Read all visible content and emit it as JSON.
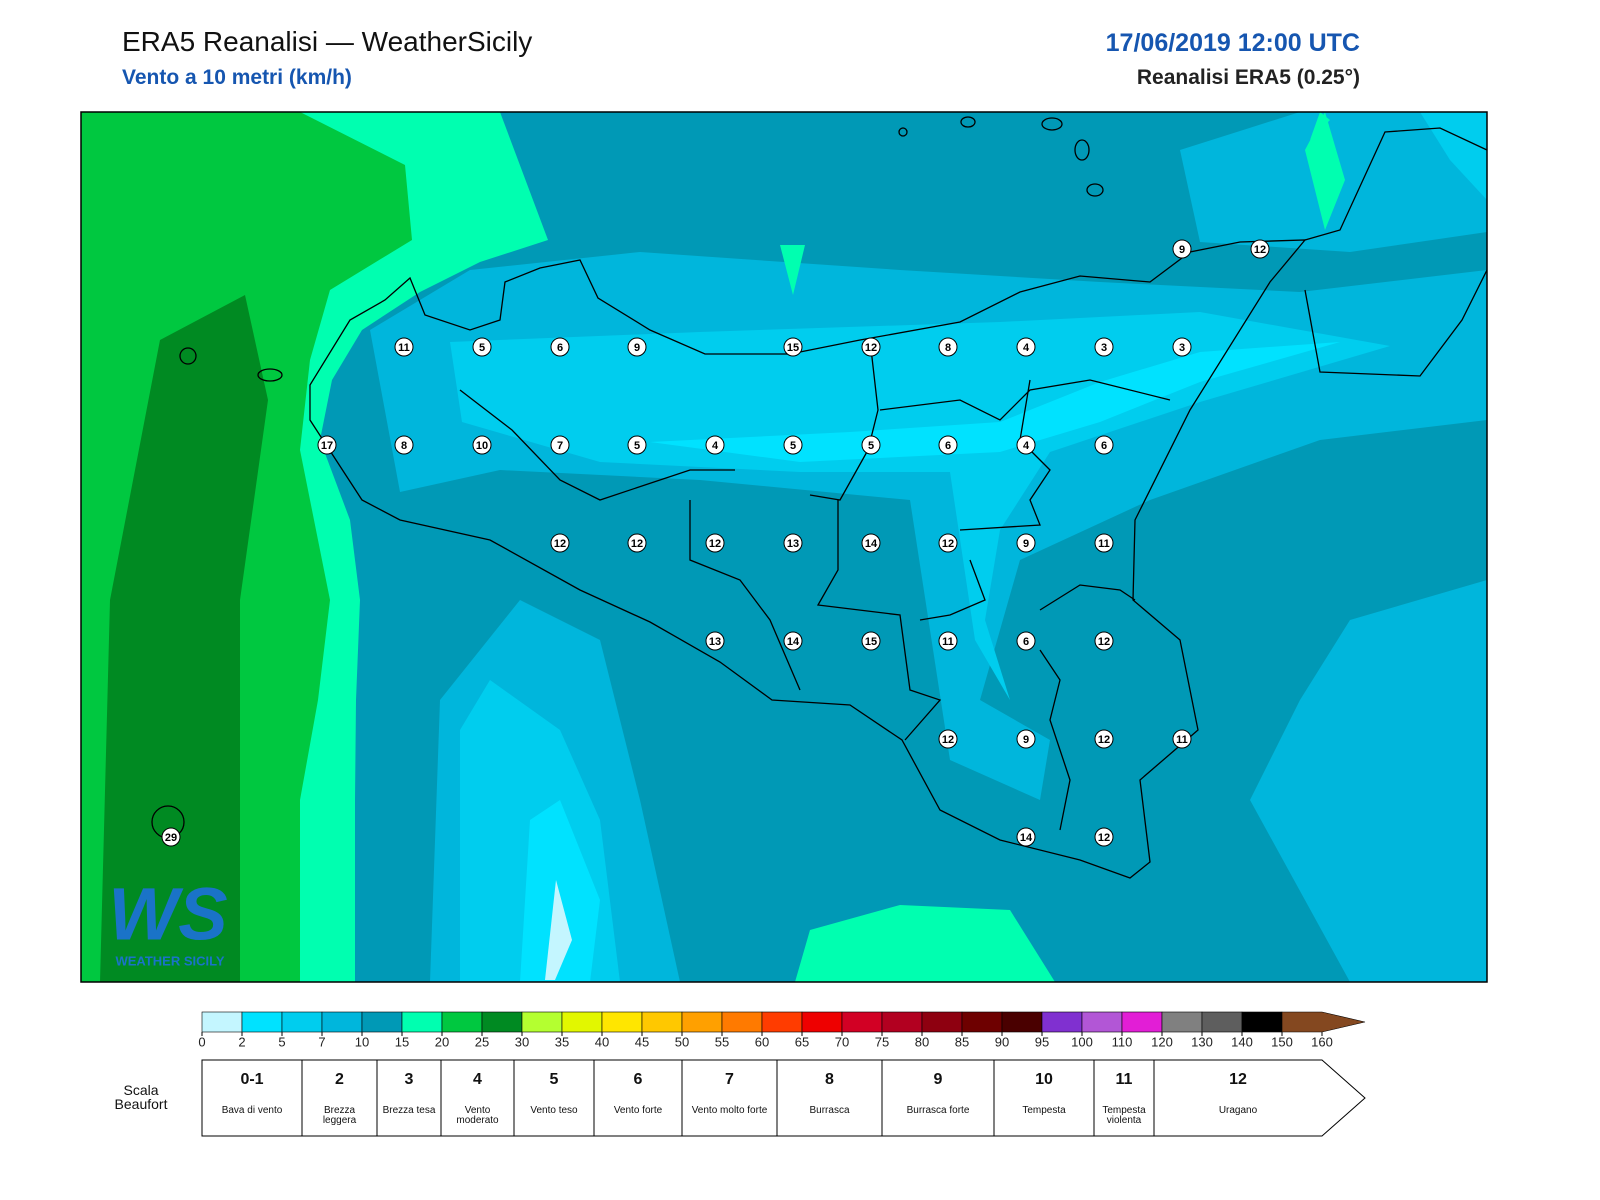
{
  "header": {
    "title": "ERA5 Reanalisi — WeatherSicily",
    "subtitle": "Vento a 10 metri (km/h)",
    "datetime": "17/06/2019 12:00 UTC",
    "source": "Reanalisi ERA5 (0.25°)"
  },
  "logo": {
    "mark": "WS",
    "name": "WEATHER SICILY"
  },
  "stations": [
    9,
    12,
    11,
    5,
    6,
    9,
    15,
    12,
    8,
    4,
    3,
    3,
    17,
    8,
    10,
    7,
    5,
    4,
    5,
    5,
    6,
    4,
    6,
    12,
    12,
    12,
    13,
    14,
    12,
    9,
    11,
    13,
    14,
    15,
    11,
    6,
    12,
    12,
    9,
    12,
    11,
    29,
    14,
    12
  ],
  "colorbar": {
    "ticks": [
      0,
      2,
      5,
      7,
      10,
      15,
      20,
      25,
      30,
      35,
      40,
      45,
      50,
      55,
      60,
      65,
      70,
      75,
      80,
      85,
      90,
      95,
      100,
      110,
      120,
      130,
      140,
      150,
      160
    ],
    "colors": [
      "#c4f6ff",
      "#00e2ff",
      "#00cdee",
      "#00b6dc",
      "#0099b6",
      "#00ffb0",
      "#00c840",
      "#008a22",
      "#b4ff30",
      "#e2f700",
      "#ffe600",
      "#ffc800",
      "#ffa000",
      "#ff7a00",
      "#ff3c00",
      "#ee0000",
      "#d20024",
      "#b20020",
      "#8e0010",
      "#6e0000",
      "#4a0000",
      "#8030d0",
      "#b256d6",
      "#e21ed6",
      "#808080",
      "#5e5e5e",
      "#000000",
      "#844820",
      "#c47e42"
    ]
  },
  "beaufort": {
    "title": "Scala Beaufort",
    "forces": [
      {
        "force": "0-1",
        "label": "Bava di vento"
      },
      {
        "force": "2",
        "label": "Brezza leggera"
      },
      {
        "force": "3",
        "label": "Brezza tesa"
      },
      {
        "force": "4",
        "label": "Vento moderato"
      },
      {
        "force": "5",
        "label": "Vento teso"
      },
      {
        "force": "6",
        "label": "Vento forte"
      },
      {
        "force": "7",
        "label": "Vento molto forte"
      },
      {
        "force": "8",
        "label": "Burrasca"
      },
      {
        "force": "9",
        "label": "Burrasca forte"
      },
      {
        "force": "10",
        "label": "Tempesta"
      },
      {
        "force": "11",
        "label": "Tempesta violenta"
      },
      {
        "force": "12",
        "label": "Uragano"
      }
    ]
  }
}
